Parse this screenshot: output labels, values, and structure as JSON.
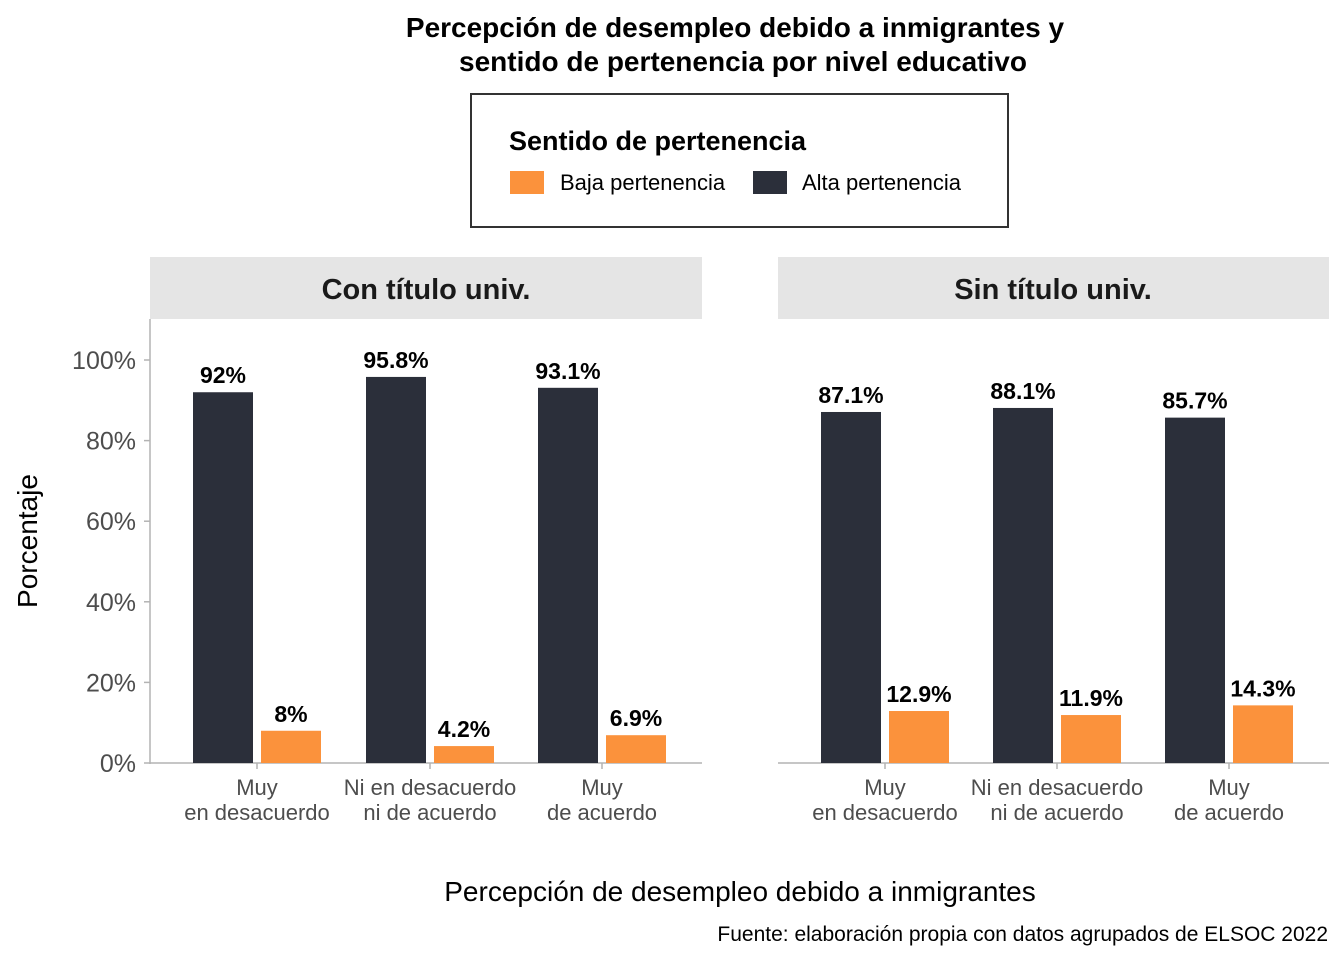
{
  "chart_data": {
    "type": "bar",
    "title_lines": [
      "Percepción de desempleo debido a inmigrantes y",
      "sentido de pertenencia por nivel educativo"
    ],
    "xlabel": "Percepción de desempleo debido a inmigrantes",
    "ylabel": "Porcentaje",
    "caption": "Fuente: elaboración propia con datos agrupados de ELSOC 2022",
    "ylim": [
      0,
      110
    ],
    "yticks": [
      0,
      20,
      40,
      60,
      80,
      100
    ],
    "ytick_labels": [
      "0%",
      "20%",
      "40%",
      "60%",
      "80%",
      "100%"
    ],
    "grid": false,
    "legend": {
      "title": "Sentido de pertenencia",
      "position": "top",
      "entries": [
        {
          "name": "Baja pertenencia",
          "color": "#fb923c"
        },
        {
          "name": "Alta pertenencia",
          "color": "#2b2f3a"
        }
      ]
    },
    "categories": [
      [
        "Muy",
        "en desacuerdo"
      ],
      [
        "Ni en desacuerdo",
        "ni de acuerdo"
      ],
      [
        "Muy",
        "de acuerdo"
      ]
    ],
    "facets": [
      {
        "title": "Con título univ.",
        "series": [
          {
            "name": "Alta pertenencia",
            "color": "#2b2f3a",
            "values": [
              92,
              95.8,
              93.1
            ],
            "labels": [
              "92%",
              "95.8%",
              "93.1%"
            ]
          },
          {
            "name": "Baja pertenencia",
            "color": "#fb923c",
            "values": [
              8,
              4.2,
              6.9
            ],
            "labels": [
              "8%",
              "4.2%",
              "6.9%"
            ]
          }
        ]
      },
      {
        "title": "Sin título univ.",
        "series": [
          {
            "name": "Alta pertenencia",
            "color": "#2b2f3a",
            "values": [
              87.1,
              88.1,
              85.7
            ],
            "labels": [
              "87.1%",
              "88.1%",
              "85.7%"
            ]
          },
          {
            "name": "Baja pertenencia",
            "color": "#fb923c",
            "values": [
              12.9,
              11.9,
              14.3
            ],
            "labels": [
              "12.9%",
              "11.9%",
              "14.3%"
            ]
          }
        ]
      }
    ]
  }
}
